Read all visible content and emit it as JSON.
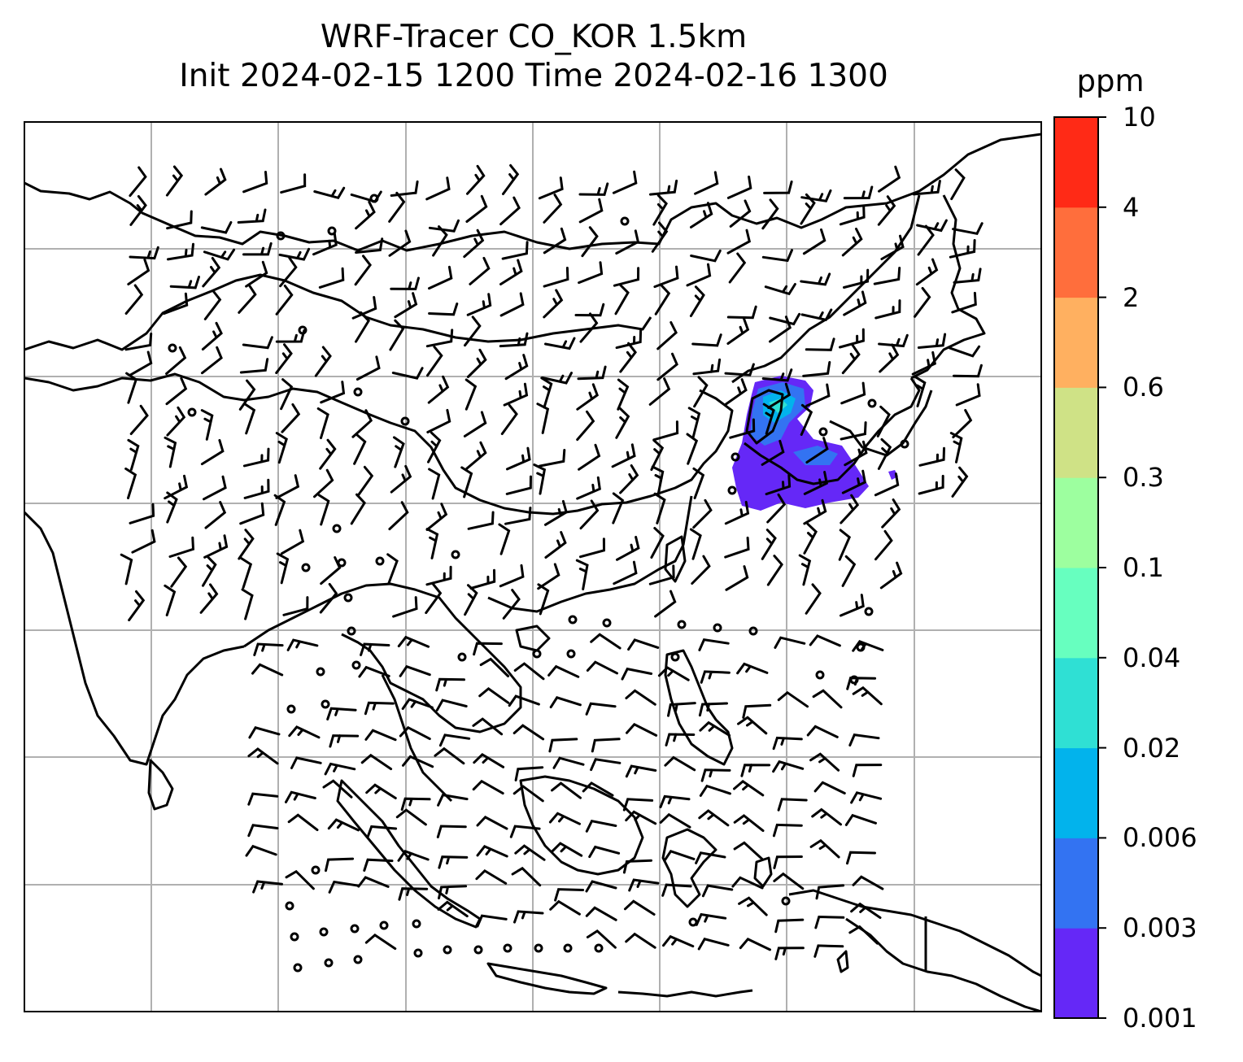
{
  "title": {
    "line1": "WRF-Tracer CO_KOR 1.5km",
    "line2": "Init 2024-02-15 1200 Time 2024-02-16 1300"
  },
  "colorbar": {
    "unit": "ppm",
    "levels": [
      "0.001",
      "0.003",
      "0.006",
      "0.02",
      "0.04",
      "0.1",
      "0.3",
      "0.6",
      "2",
      "4",
      "10"
    ],
    "colors": [
      "#6528f7",
      "#3373f2",
      "#02b3ec",
      "#2fe0d4",
      "#67ffbf",
      "#9dff9f",
      "#cfe286",
      "#ffb060",
      "#ff6e3c",
      "#ff2a16"
    ]
  },
  "map": {
    "coastline_color": "#000000",
    "grid_color": "#b0b0b0",
    "wind_barb_color": "#000000"
  }
}
